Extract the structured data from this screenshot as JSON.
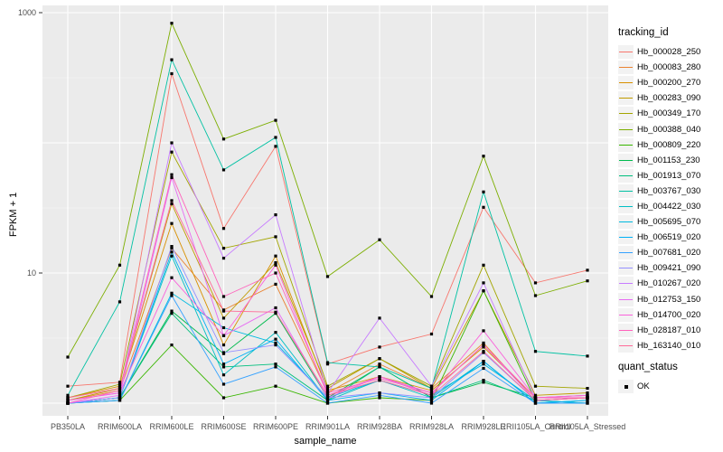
{
  "figure": {
    "xaxis_title": "sample_name",
    "yaxis_title": "FPKM + 1",
    "legend_title": "tracking_id",
    "legend2_title": "quant_status",
    "legend2_items": [
      "OK"
    ],
    "panel_bg": "#EBEBEB",
    "grid_color": "#FFFFFF",
    "axis_text_color": "#4d4d4d",
    "point_color": "#000000"
  },
  "chart_data": {
    "type": "line",
    "title": "",
    "xlabel": "sample_name",
    "ylabel": "FPKM + 1",
    "y_scale": "log10",
    "ylim": [
      1,
      1000
    ],
    "y_major_ticks": [
      10,
      1000
    ],
    "y_major_tick_labels": [
      "10",
      "1000"
    ],
    "y_gridlines_major": [
      1,
      10,
      100,
      1000
    ],
    "y_gridlines_minor": [
      3.162,
      31.62,
      316.2
    ],
    "grid": true,
    "legend_position": "right",
    "point_shape": "filled-square",
    "categories": [
      "PB350LA",
      "RRIM600LA",
      "RRIM600LE",
      "RRIM600SE",
      "RRIM600PE",
      "RRIM901LA",
      "RRIM928BA",
      "RRIM928LA",
      "RRIM928LE",
      "RRII105LA_Control",
      "RRII105LA_Stressed"
    ],
    "series": [
      {
        "name": "Hb_000028_250",
        "color": "#F8766D",
        "values": [
          1.35,
          1.45,
          340,
          22,
          94,
          2.0,
          2.7,
          3.4,
          32,
          8.4,
          10.5
        ]
      },
      {
        "name": "Hb_000083_280",
        "color": "#EA8331",
        "values": [
          1.05,
          1.25,
          15.5,
          5.2,
          8.2,
          1.2,
          2.0,
          1.3,
          2.9,
          1.05,
          1.1
        ]
      },
      {
        "name": "Hb_000200_270",
        "color": "#D89000",
        "values": [
          1.1,
          1.35,
          24,
          2.8,
          13.5,
          1.25,
          1.6,
          1.25,
          2.7,
          1.1,
          1.15
        ]
      },
      {
        "name": "Hb_000283_090",
        "color": "#C09B00",
        "values": [
          1.05,
          1.3,
          34,
          4.5,
          12,
          1.3,
          2.2,
          1.3,
          7.3,
          1.15,
          1.2
        ]
      },
      {
        "name": "Hb_000349_170",
        "color": "#A3A500",
        "values": [
          1.1,
          1.4,
          85,
          15.5,
          19,
          1.35,
          2.2,
          1.35,
          11.5,
          1.35,
          1.3
        ]
      },
      {
        "name": "Hb_000388_040",
        "color": "#7CAE00",
        "values": [
          2.26,
          11.5,
          830,
          107,
          149,
          9.4,
          18,
          6.6,
          79,
          6.7,
          8.7
        ]
      },
      {
        "name": "Hb_000809_220",
        "color": "#39B600",
        "values": [
          1.0,
          1.05,
          2.8,
          1.1,
          1.35,
          1.0,
          1.1,
          1.05,
          7.3,
          1.05,
          1.1
        ]
      },
      {
        "name": "Hb_001153_230",
        "color": "#00BB4E",
        "values": [
          1.0,
          1.1,
          5.1,
          2.4,
          4.9,
          1.1,
          1.9,
          1.1,
          1.45,
          1.1,
          1.1
        ]
      },
      {
        "name": "Hb_001913_070",
        "color": "#00BF7D",
        "values": [
          1.0,
          1.1,
          4.9,
          1.9,
          2.0,
          1.05,
          1.9,
          1.1,
          1.5,
          1.05,
          1.0
        ]
      },
      {
        "name": "Hb_003767_030",
        "color": "#00C1A3",
        "values": [
          1.15,
          6.0,
          435,
          62,
          110,
          2.05,
          1.9,
          1.3,
          42,
          2.5,
          2.3
        ]
      },
      {
        "name": "Hb_004422_030",
        "color": "#00BFC4",
        "values": [
          1.0,
          1.1,
          13.5,
          1.65,
          3.5,
          1.05,
          1.5,
          1.1,
          2.1,
          1.0,
          1.05
        ]
      },
      {
        "name": "Hb_005695_070",
        "color": "#00BAE0",
        "values": [
          1.0,
          1.05,
          7.0,
          3.8,
          2.9,
          1.1,
          1.5,
          1.15,
          2.0,
          1.05,
          1.0
        ]
      },
      {
        "name": "Hb_006519_020",
        "color": "#00B0F6",
        "values": [
          1.0,
          1.1,
          14.5,
          2.0,
          3.1,
          1.05,
          1.2,
          1.05,
          2.1,
          1.0,
          1.05
        ]
      },
      {
        "name": "Hb_007681_020",
        "color": "#35A2FF",
        "values": [
          1.0,
          1.05,
          6.7,
          1.4,
          1.9,
          1.0,
          1.15,
          1.0,
          1.85,
          1.0,
          1.0
        ]
      },
      {
        "name": "Hb_009421_090",
        "color": "#9590FF",
        "values": [
          1.0,
          1.1,
          16,
          2.45,
          2.8,
          1.1,
          1.2,
          1.1,
          2.45,
          1.05,
          1.1
        ]
      },
      {
        "name": "Hb_010267_020",
        "color": "#C77CFF",
        "values": [
          1.05,
          1.2,
          100,
          13,
          28,
          1.2,
          4.5,
          1.35,
          8.4,
          1.1,
          1.15
        ]
      },
      {
        "name": "Hb_012753_150",
        "color": "#E76BF3",
        "values": [
          1.0,
          1.15,
          54,
          3.3,
          5.4,
          1.1,
          1.6,
          1.2,
          2.8,
          1.05,
          1.1
        ]
      },
      {
        "name": "Hb_014700_020",
        "color": "#FA62DB",
        "values": [
          1.05,
          1.2,
          9.2,
          3.3,
          11.5,
          1.15,
          1.6,
          1.15,
          3.6,
          1.1,
          1.15
        ]
      },
      {
        "name": "Hb_028187_010",
        "color": "#FF62BC",
        "values": [
          1.0,
          1.25,
          57,
          6.6,
          10,
          1.2,
          1.55,
          1.2,
          2.8,
          1.1,
          1.1
        ]
      },
      {
        "name": "Hb_163140_010",
        "color": "#FF6A98",
        "values": [
          1.1,
          1.3,
          36,
          5.1,
          5.0,
          1.15,
          1.5,
          1.15,
          2.5,
          1.05,
          1.1
        ]
      }
    ]
  }
}
